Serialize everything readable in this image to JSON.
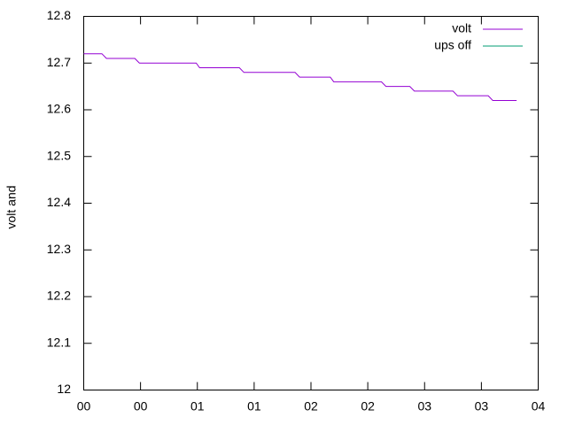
{
  "chart_data": {
    "type": "line",
    "ylabel": "volt and",
    "x": [
      0,
      0.16,
      0.2,
      0.45,
      0.49,
      0.99,
      1.02,
      1.37,
      1.41,
      1.86,
      1.9,
      2.17,
      2.2,
      2.62,
      2.66,
      2.87,
      2.91,
      3.25,
      3.29,
      3.56,
      3.6,
      3.81
    ],
    "series": [
      {
        "name": "volt",
        "color": "#9400d3",
        "values": [
          12.72,
          12.72,
          12.71,
          12.71,
          12.7,
          12.7,
          12.69,
          12.69,
          12.68,
          12.68,
          12.67,
          12.67,
          12.66,
          12.66,
          12.65,
          12.65,
          12.64,
          12.64,
          12.63,
          12.63,
          12.62,
          12.62
        ]
      },
      {
        "name": "ups off",
        "color": "#009e73",
        "values": [
          null,
          null,
          null,
          null,
          null,
          null,
          null,
          null,
          null,
          null,
          null,
          null,
          null,
          null,
          null,
          null,
          null,
          null,
          null,
          null,
          null,
          null
        ]
      }
    ],
    "xlim": [
      0,
      4
    ],
    "xticks": [
      {
        "value": 0,
        "label": "00"
      },
      {
        "value": 0.5,
        "label": "00"
      },
      {
        "value": 1,
        "label": "01"
      },
      {
        "value": 1.5,
        "label": "01"
      },
      {
        "value": 2,
        "label": "02"
      },
      {
        "value": 2.5,
        "label": "02"
      },
      {
        "value": 3,
        "label": "03"
      },
      {
        "value": 3.5,
        "label": "03"
      },
      {
        "value": 4,
        "label": "04"
      }
    ],
    "ylim": [
      12,
      12.8
    ],
    "yticks": [
      12,
      12.1,
      12.2,
      12.3,
      12.4,
      12.5,
      12.6,
      12.7,
      12.8
    ],
    "legend": "top-right"
  }
}
